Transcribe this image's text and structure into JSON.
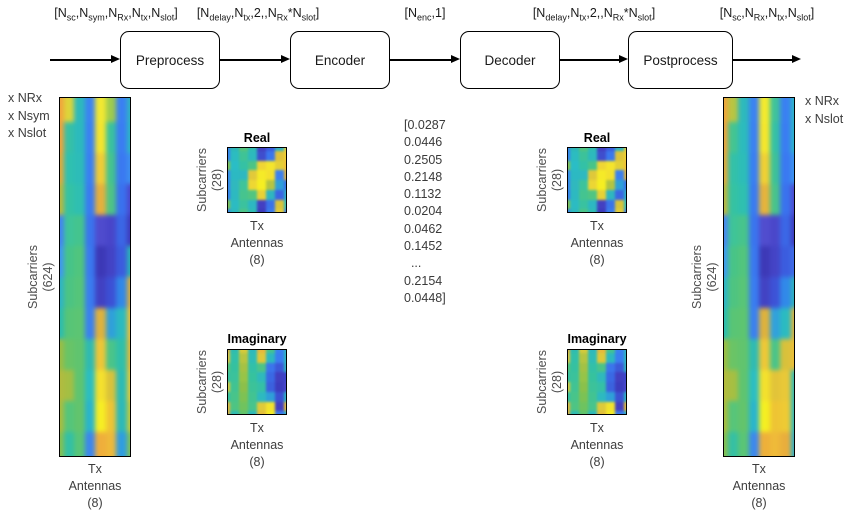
{
  "pipeline": {
    "dim_labels": [
      {
        "segments": [
          {
            "t": "[N",
            "sub": "sc"
          },
          {
            "t": ",N",
            "sub": "sym"
          },
          {
            "t": ",N",
            "sub": "Rx"
          },
          {
            "t": ",N",
            "sub": "tx"
          },
          {
            "t": ",N",
            "sub": "slot"
          },
          {
            "t": "]"
          }
        ]
      },
      {
        "segments": [
          {
            "t": "[N",
            "sub": "delay"
          },
          {
            "t": ",N",
            "sub": "tx"
          },
          {
            "t": ",2,,N",
            "sub": "Rx"
          },
          {
            "t": "*N",
            "sub": "slot"
          },
          {
            "t": "]"
          }
        ]
      },
      {
        "segments": [
          {
            "t": "[N",
            "sub": "enc"
          },
          {
            "t": ",1]"
          }
        ]
      },
      {
        "segments": [
          {
            "t": "[N",
            "sub": "delay"
          },
          {
            "t": ",N",
            "sub": "tx"
          },
          {
            "t": ",2,,N",
            "sub": "Rx"
          },
          {
            "t": "*N",
            "sub": "slot"
          },
          {
            "t": "]"
          }
        ]
      },
      {
        "segments": [
          {
            "t": "[N",
            "sub": "sc"
          },
          {
            "t": ",N",
            "sub": "Rx"
          },
          {
            "t": ",N",
            "sub": "tx"
          },
          {
            "t": ",N",
            "sub": "slot"
          },
          {
            "t": "]"
          }
        ]
      }
    ],
    "boxes": [
      {
        "label": "Preprocess"
      },
      {
        "label": "Encoder"
      },
      {
        "label": "Decoder"
      },
      {
        "label": "Postprocess"
      }
    ]
  },
  "codeword": {
    "lines": [
      "[0.0287",
      "0.0446",
      "0.2505",
      "0.2148",
      "0.1132",
      "0.0204",
      "0.0462",
      "0.1452",
      "  ...",
      "0.2154",
      "0.0448]"
    ]
  },
  "left_panel": {
    "multipliers": [
      "x NRx",
      "x Nsym",
      "x Nslot"
    ],
    "ylabel": "Subcarriers",
    "ylabel_dim": "(624)",
    "xlabel_lines": [
      "Tx",
      "Antennas",
      "(8)"
    ],
    "grid": [
      [
        "#f0a63c",
        "#ddd53a",
        "#2db9bc",
        "#3c83f2",
        "#f2e832",
        "#9ecb4e",
        "#3a80f2",
        "#2fb5c2"
      ],
      [
        "#efa43d",
        "#36c0a6",
        "#2cbabd",
        "#3b81f2",
        "#f5e52e",
        "#3ac29e",
        "#3a7df2",
        "#2db7c4"
      ],
      [
        "#dfab3e",
        "#2fc0b0",
        "#2dbcb8",
        "#3a7ff2",
        "#f0cc37",
        "#44c38f",
        "#3a79f1",
        "#3c90ee"
      ],
      [
        "#b9b843",
        "#34c2a4",
        "#2fbfb1",
        "#3a7bf1",
        "#e5b03d",
        "#4ec485",
        "#3a71ee",
        "#4a48cc"
      ],
      [
        "#4384f1",
        "#3fc499",
        "#44c48e",
        "#3a74ee",
        "#4f4bcd",
        "#4845c9",
        "#3b66e5",
        "#3e3bbb"
      ],
      [
        "#3f98ee",
        "#46c489",
        "#50c57e",
        "#3a78f0",
        "#3c38b6",
        "#4343c5",
        "#3b5cde",
        "#2cb4b4"
      ],
      [
        "#2fb3c4",
        "#4cc483",
        "#55c57a",
        "#3a7cf0",
        "#4141c2",
        "#3c50d5",
        "#3188e8",
        "#dcae3d"
      ],
      [
        "#2dbcae",
        "#57c577",
        "#5cc573",
        "#3a80f0",
        "#dfb23c",
        "#2fa0da",
        "#2bbac0",
        "#eebf3a"
      ],
      [
        "#9abd45",
        "#68c467",
        "#60c46f",
        "#2fbab2",
        "#eec637",
        "#49c48a",
        "#2fbfaa",
        "#e8ba3b"
      ],
      [
        "#b2bb3f",
        "#a4bf43",
        "#5ec471",
        "#2bbdc2",
        "#f4e02e",
        "#d9c23a",
        "#2dbbb5",
        "#e3cb39"
      ],
      [
        "#a8bd41",
        "#55c57b",
        "#62c46d",
        "#29b4cc",
        "#f6ee24",
        "#eec434",
        "#2db9b8",
        "#c6ca3c"
      ],
      [
        "#84c053",
        "#33c0a5",
        "#58c577",
        "#3c86ee",
        "#efae3b",
        "#eeb93a",
        "#2f9de0",
        "#7fc258"
      ]
    ]
  },
  "mid_left": {
    "real": {
      "title": "Real",
      "ylabel": "Subcarriers",
      "ylabel_dim": "(28)",
      "xlabel_lines": [
        "Tx",
        "Antennas",
        "(8)"
      ],
      "grid": [
        [
          "#3b82f0",
          "#2db8b8",
          "#55c47c",
          "#2fbcb2",
          "#4340c0",
          "#3a5ce0",
          "#2fb2c2",
          "#e8cf38"
        ],
        [
          "#3a7df0",
          "#2cbcc0",
          "#3fc396",
          "#2db9bd",
          "#3f4ecd",
          "#3a76ee",
          "#dfc23a",
          "#f0ce33"
        ],
        [
          "#8cbf4a",
          "#2abdc6",
          "#35c1a4",
          "#4cc486",
          "#f0d534",
          "#f4e52c",
          "#e4cf36",
          "#f1bf3a"
        ],
        [
          "#3b86ee",
          "#2cb9c2",
          "#2eb8c0",
          "#e2c93a",
          "#f5ea28",
          "#f3e02e",
          "#3c80ee",
          "#e5b53c"
        ],
        [
          "#3a80f0",
          "#30b8be",
          "#3ec49a",
          "#eed733",
          "#f6ee22",
          "#b5c441",
          "#2d9fd8",
          "#3a70e8"
        ],
        [
          "#3a7af0",
          "#2db9c0",
          "#46c48e",
          "#52c580",
          "#e8d136",
          "#2fb6c0",
          "#3b64e2",
          "#2fb0c6"
        ],
        [
          "#8abf4b",
          "#2cbbc2",
          "#3bc29e",
          "#2db7c2",
          "#433fc2",
          "#3a72ea",
          "#dac33a",
          "#2fb8b8"
        ],
        [
          "#3b80ef",
          "#2db9bd",
          "#4cc487",
          "#2fbcb4",
          "#3d3abc",
          "#3b7cee",
          "#e6cc38",
          "#3a82ee"
        ]
      ]
    },
    "imaginary": {
      "title": "Imaginary",
      "ylabel": "Subcarriers",
      "ylabel_dim": "(28)",
      "xlabel_lines": [
        "Tx",
        "Antennas",
        "(8)"
      ],
      "grid": [
        [
          "#eab23c",
          "#2fbcb0",
          "#d8cb3a",
          "#2db9bc",
          "#e8b83c",
          "#45c48e",
          "#3a80f0",
          "#2fb4c4"
        ],
        [
          "#e8c43a",
          "#32c0a8",
          "#b8c540",
          "#2fbcb6",
          "#dfc83a",
          "#2db8c0",
          "#3a7cf0",
          "#2db8c0"
        ],
        [
          "#58c47c",
          "#35c19f",
          "#a5c244",
          "#32c0a8",
          "#4cc488",
          "#3b74ec",
          "#3c58d8",
          "#2fb6c2"
        ],
        [
          "#3ac09e",
          "#3bc29b",
          "#98c447",
          "#36c29e",
          "#2fb9bc",
          "#3a68e4",
          "#413fc0",
          "#3b46cc"
        ],
        [
          "#e0c93a",
          "#41c392",
          "#8cc04a",
          "#3cc299",
          "#35c0a6",
          "#3b60de",
          "#3c3cbe",
          "#4a48cc"
        ],
        [
          "#35c0a4",
          "#48c48a",
          "#7ec253",
          "#42c392",
          "#2db9c0",
          "#2f9ed8",
          "#3b50d2",
          "#2db6c4"
        ],
        [
          "#eab63c",
          "#4ec483",
          "#70c35e",
          "#48c48c",
          "#dfca39",
          "#f2e32c",
          "#433fc0",
          "#e8c13a"
        ],
        [
          "#e2ac3d",
          "#2fbcb2",
          "#62c46a",
          "#2db9bc",
          "#e5be3b",
          "#f5ec26",
          "#3a7aee",
          "#2fb2c6"
        ]
      ]
    }
  },
  "mid_right": {
    "real": {
      "title": "Real",
      "ylabel": "Subcarriers",
      "ylabel_dim": "(28)",
      "xlabel_lines": [
        "Tx",
        "Antennas",
        "(8)"
      ],
      "grid": [
        [
          "#3b82f0",
          "#2db8b8",
          "#50c480",
          "#2fbcb2",
          "#443fc2",
          "#3a5ee0",
          "#2fb4c0",
          "#e6cd38"
        ],
        [
          "#3a7ef0",
          "#2cbcc0",
          "#3cc29a",
          "#2db9bd",
          "#3f4ecd",
          "#3a78ee",
          "#ddc43a",
          "#efcf33"
        ],
        [
          "#90bf49",
          "#2abdc6",
          "#33c1a6",
          "#48c489",
          "#efd634",
          "#f4e42c",
          "#e2d036",
          "#f0c03a"
        ],
        [
          "#3b86ee",
          "#2cb9c2",
          "#2eb9c0",
          "#dfc83a",
          "#f5ea28",
          "#f2e12e",
          "#3b80ee",
          "#e3b63c"
        ],
        [
          "#3a80f0",
          "#30b8be",
          "#3cc39c",
          "#ecd634",
          "#f6ee22",
          "#b2c442",
          "#2da0d8",
          "#3a72e8"
        ],
        [
          "#3a7af0",
          "#2db9c0",
          "#44c490",
          "#50c582",
          "#e6d136",
          "#2fb6c0",
          "#3b66e2",
          "#2fb1c6"
        ],
        [
          "#88bf4c",
          "#2cbbc2",
          "#39c2a0",
          "#2db7c2",
          "#4340c1",
          "#3a74ea",
          "#d8c43a",
          "#2fb8b9"
        ],
        [
          "#3b80ef",
          "#2db9bd",
          "#4ac488",
          "#2fbcb4",
          "#3d3abc",
          "#3b7eee",
          "#e4cd38",
          "#3a83ee"
        ]
      ]
    },
    "imaginary": {
      "title": "Imaginary",
      "ylabel": "Subcarriers",
      "ylabel_dim": "(28)",
      "xlabel_lines": [
        "Tx",
        "Antennas",
        "(8)"
      ],
      "grid": [
        [
          "#e9b33c",
          "#2fbcb0",
          "#d5cb3b",
          "#2db9bc",
          "#e6b93c",
          "#43c390",
          "#3a80f0",
          "#2fb4c4"
        ],
        [
          "#e7c53a",
          "#32c0a8",
          "#b5c541",
          "#2fbcb6",
          "#ddc93a",
          "#2db8c0",
          "#3a7df0",
          "#2db8c0"
        ],
        [
          "#56c47d",
          "#35c1a0",
          "#a3c245",
          "#32c0a8",
          "#4ac489",
          "#3b75ec",
          "#3c5ad8",
          "#2fb6c2"
        ],
        [
          "#38c0a0",
          "#3bc29b",
          "#96c448",
          "#36c29e",
          "#2fb9bc",
          "#3a69e4",
          "#4240c0",
          "#3b48cc"
        ],
        [
          "#dec93a",
          "#41c393",
          "#8ac14b",
          "#3cc29a",
          "#35c0a6",
          "#3b62de",
          "#3c3dbe",
          "#4a49cc"
        ],
        [
          "#35c0a5",
          "#48c48a",
          "#7cc254",
          "#42c392",
          "#2db9c0",
          "#2f9fd8",
          "#3b52d2",
          "#2db6c4"
        ],
        [
          "#e9b73c",
          "#4ec484",
          "#6ec35f",
          "#48c48c",
          "#ddca3a",
          "#f1e32c",
          "#4440c0",
          "#e6c23a"
        ],
        [
          "#e1ad3d",
          "#2fbcb2",
          "#60c46b",
          "#2db9bc",
          "#e3bf3b",
          "#f5eb26",
          "#3a7bee",
          "#2fb2c6"
        ]
      ]
    }
  },
  "right_panel": {
    "multipliers": [
      "x NRx",
      "x Nslot"
    ],
    "ylabel": "Subcarriers",
    "ylabel_dim": "(624)",
    "xlabel_lines": [
      "Tx",
      "Antennas",
      "(8)"
    ],
    "grid": [
      [
        "#efa63c",
        "#b9c542",
        "#2dbabc",
        "#3b82f2",
        "#f4ea2e",
        "#3fc39a",
        "#3a80f2",
        "#2eb7c6"
      ],
      [
        "#eea53d",
        "#44c491",
        "#2cbbbd",
        "#3b80f2",
        "#f5e72c",
        "#35c1a4",
        "#3a7df2",
        "#2db8c8"
      ],
      [
        "#e3ab3e",
        "#33c1a8",
        "#2dbdb8",
        "#3a7ef2",
        "#f0d034",
        "#3dc298",
        "#3a79f1",
        "#3b93ee"
      ],
      [
        "#bdb742",
        "#35c2a2",
        "#2fc0b0",
        "#3a7af1",
        "#e6b43c",
        "#48c48b",
        "#3a72ee",
        "#4d4bce"
      ],
      [
        "#4987f0",
        "#3fc498",
        "#47c48c",
        "#3a74ef",
        "#514dce",
        "#4a47ca",
        "#3b67e6",
        "#3e3cbc"
      ],
      [
        "#3f9bee",
        "#48c487",
        "#52c57d",
        "#3a78f0",
        "#3d39b7",
        "#4444c6",
        "#3b5ddf",
        "#3f6de6"
      ],
      [
        "#2fb5c6",
        "#4ec481",
        "#58c578",
        "#3a7cf0",
        "#4243c3",
        "#3d53d7",
        "#3189e9",
        "#2fb3bc"
      ],
      [
        "#2dbdb0",
        "#59c575",
        "#5dc571",
        "#3a80f0",
        "#deb23d",
        "#31a1dc",
        "#2bbbc1",
        "#e3b43c"
      ],
      [
        "#9dbd44",
        "#6ac466",
        "#61c46e",
        "#2fbbb3",
        "#edc837",
        "#4ac489",
        "#d9c13b",
        "#eabe3a"
      ],
      [
        "#b4bb3e",
        "#a6bf42",
        "#5fc470",
        "#2bbec3",
        "#f3e12d",
        "#e2c439",
        "#e9c838",
        "#2fbcba"
      ],
      [
        "#a9bd40",
        "#57c57a",
        "#63c46c",
        "#29b5cd",
        "#f5ef22",
        "#eec434",
        "#eeca34",
        "#2db9c0"
      ],
      [
        "#86c052",
        "#35c0a4",
        "#5ac575",
        "#3c88ee",
        "#eeb03a",
        "#efba39",
        "#e9ae3c",
        "#2fb1ca"
      ]
    ]
  }
}
